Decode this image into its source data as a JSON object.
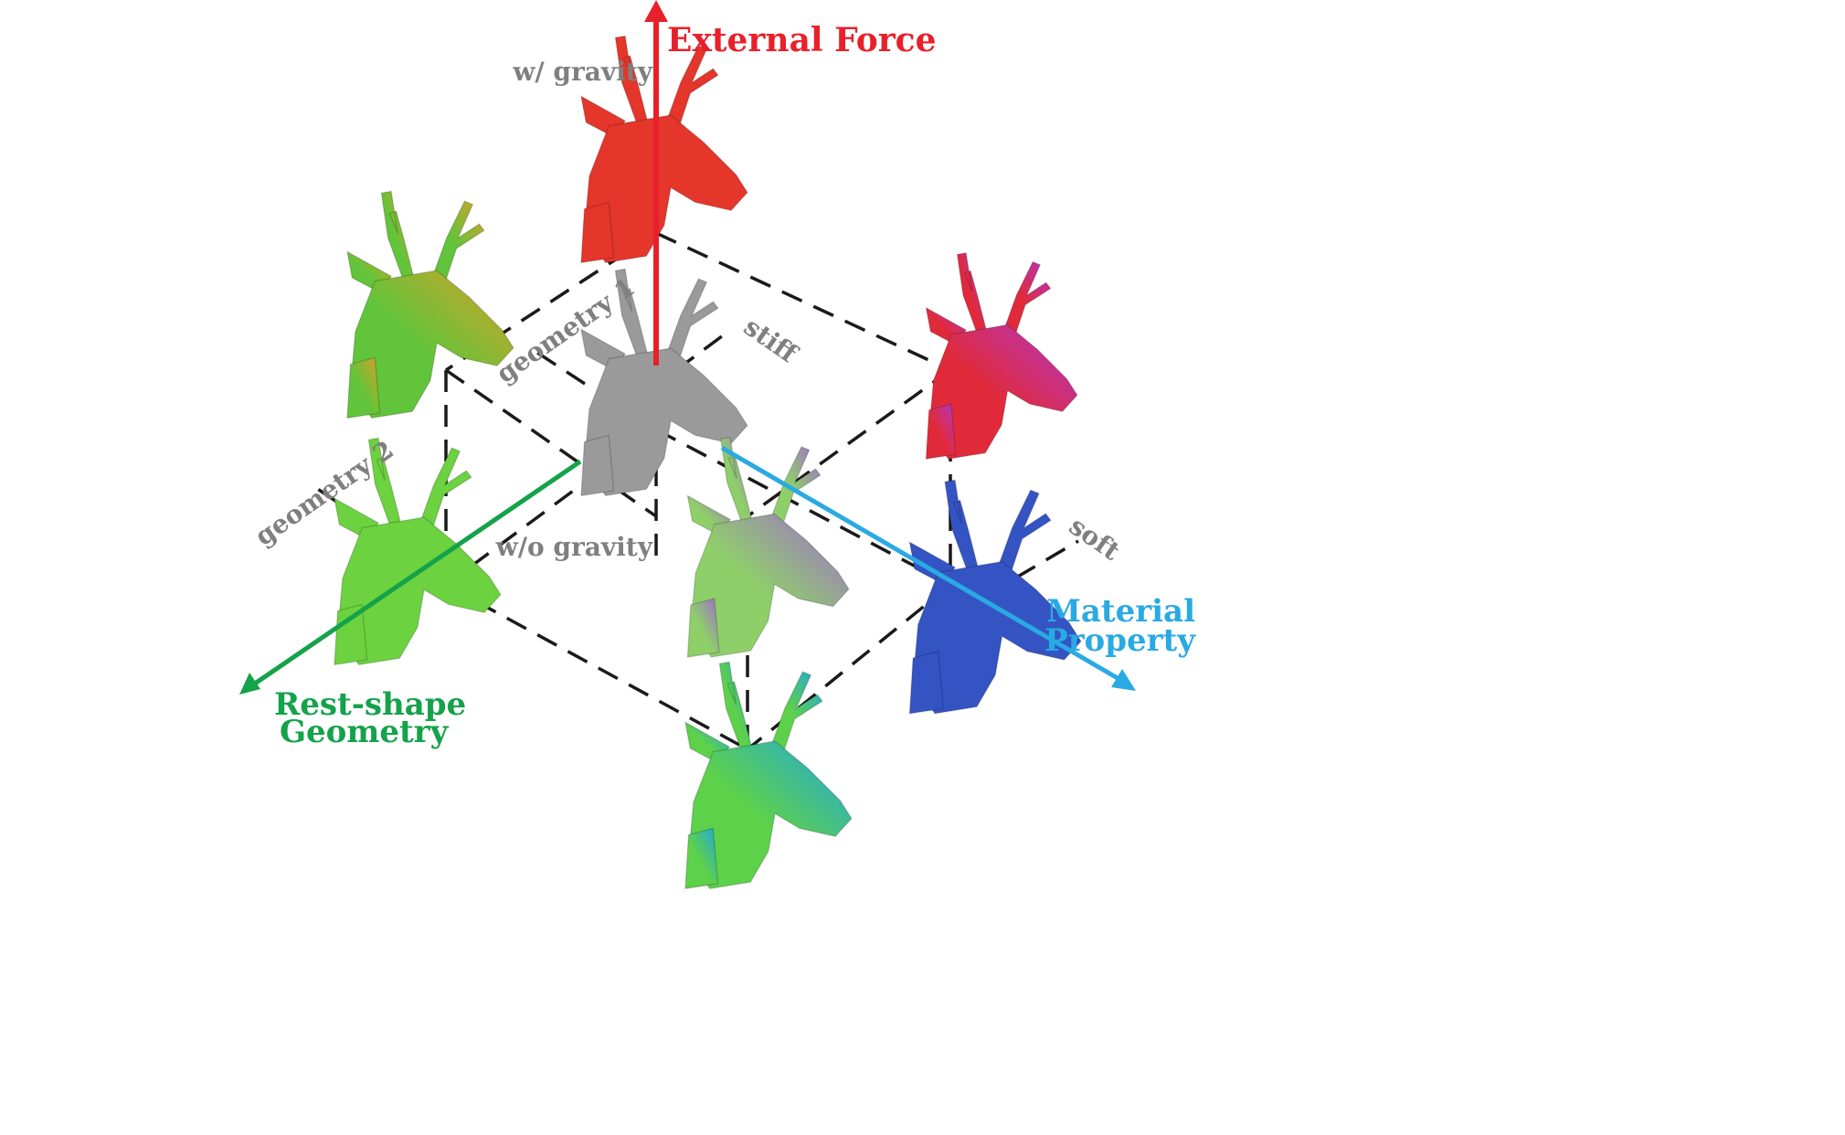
{
  "axes": {
    "external_force": {
      "title": "External Force",
      "color": "#e8202a",
      "low": "w/o gravity",
      "high": "w/ gravity"
    },
    "material_property": {
      "title_line1": "Material",
      "title_line2": "Property",
      "color": "#29aae2",
      "low": "stiff",
      "high": "soft"
    },
    "rest_shape_geometry": {
      "title_line1": "Rest-shape",
      "title_line2": "Geometry",
      "color": "#14a24a",
      "low": "geometry 1",
      "high": "geometry 2"
    }
  },
  "label_color": "#7f7f7f",
  "heads": [
    {
      "name": "gray",
      "body": "#9a9a9a",
      "tint": "#9a9a9a"
    },
    {
      "name": "red",
      "body": "#e5362b",
      "tint": "#e5362b"
    },
    {
      "name": "green-yellow",
      "body": "#62c43a",
      "tint": "#d9a02a"
    },
    {
      "name": "green",
      "body": "#6cd23f",
      "tint": "#6cd23f"
    },
    {
      "name": "red-magenta",
      "body": "#e02a3a",
      "tint": "#b436c7"
    },
    {
      "name": "blue",
      "body": "#3454c4",
      "tint": "#3454c4"
    },
    {
      "name": "multi",
      "body": "#8fcf6a",
      "tint": "#a26ad0"
    },
    {
      "name": "green-cyan",
      "body": "#5ed14a",
      "tint": "#20a6e0"
    }
  ]
}
